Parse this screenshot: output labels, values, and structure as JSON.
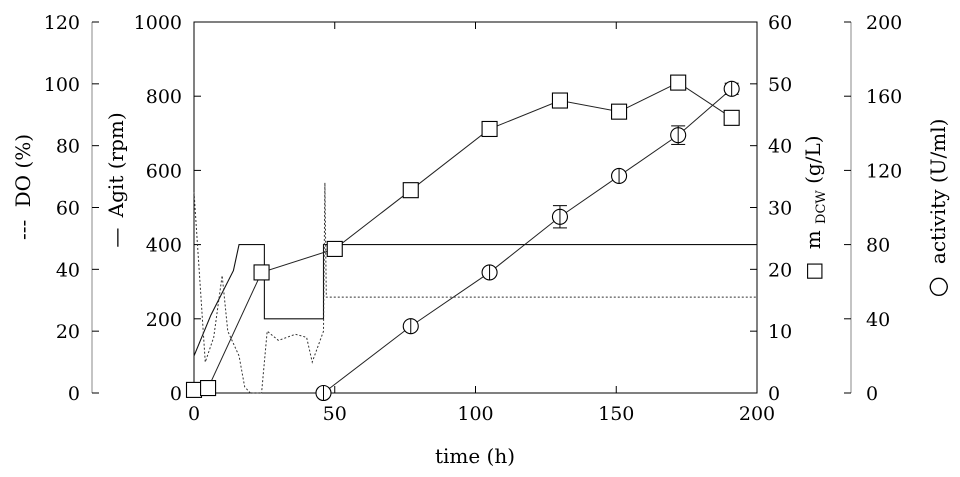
{
  "chart_data": {
    "type": "line",
    "xlabel": "time (h)",
    "xlim": [
      0,
      200
    ],
    "x_ticks": [
      "0",
      "50",
      "100",
      "150",
      "200"
    ],
    "axes": {
      "do": {
        "label": "DO (%)",
        "legend_symbol": "---",
        "range": [
          0,
          120
        ],
        "ticks": [
          "0",
          "20",
          "40",
          "60",
          "80",
          "100",
          "120"
        ]
      },
      "agit": {
        "label": "Agit (rpm)",
        "legend_symbol": "—",
        "range": [
          0,
          1000
        ],
        "ticks": [
          "0",
          "200",
          "400",
          "600",
          "800",
          "1000"
        ]
      },
      "mdcw": {
        "label_main": "m",
        "label_sub": "DCW",
        "label_unit": " (g/L)",
        "legend_symbol": "□",
        "range": [
          0,
          60
        ],
        "ticks": [
          "0",
          "10",
          "20",
          "30",
          "40",
          "50",
          "60"
        ]
      },
      "activity": {
        "label": "activity (U/ml)",
        "legend_symbol": "○",
        "range": [
          0,
          200
        ],
        "ticks": [
          "0",
          "40",
          "80",
          "120",
          "160",
          "200"
        ]
      }
    },
    "series": [
      {
        "axis": "mdcw",
        "marker": "square",
        "x": [
          0,
          5,
          24,
          50,
          77,
          105,
          130,
          151,
          172,
          191
        ],
        "y": [
          0.5,
          0.8,
          19.5,
          23.3,
          32.8,
          42.7,
          47.3,
          45.5,
          50.2,
          44.5
        ]
      },
      {
        "axis": "activity",
        "marker": "circle",
        "x": [
          46,
          77,
          105,
          130,
          151,
          172,
          191
        ],
        "y": [
          0,
          36,
          65,
          95,
          117,
          139,
          164
        ],
        "err": [
          0,
          0,
          0,
          6,
          0,
          5,
          3
        ]
      },
      {
        "axis": "agit",
        "style": "solid-thin",
        "x": [
          0,
          6,
          14,
          16,
          25,
          25,
          46,
          46,
          200
        ],
        "y": [
          100,
          210,
          330,
          400,
          400,
          200,
          200,
          400,
          400
        ]
      },
      {
        "axis": "do",
        "style": "dotted",
        "x": [
          0,
          4,
          7,
          10,
          12,
          16,
          18,
          20,
          24,
          26,
          30,
          36,
          40,
          42,
          46,
          46.5,
          47,
          200
        ],
        "y": [
          65,
          10,
          18,
          38,
          20,
          12,
          2,
          0,
          0,
          20,
          17,
          19,
          18,
          10,
          20,
          68,
          31,
          31
        ]
      }
    ]
  }
}
